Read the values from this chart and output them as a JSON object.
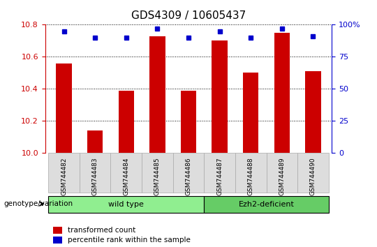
{
  "title": "GDS4309 / 10605437",
  "samples": [
    "GSM744482",
    "GSM744483",
    "GSM744484",
    "GSM744485",
    "GSM744486",
    "GSM744487",
    "GSM744488",
    "GSM744489",
    "GSM744490"
  ],
  "bar_values": [
    10.56,
    10.14,
    10.39,
    10.73,
    10.39,
    10.7,
    10.5,
    10.75,
    10.51
  ],
  "percentile_values": [
    95,
    90,
    90,
    97,
    90,
    95,
    90,
    97,
    91
  ],
  "bar_color": "#cc0000",
  "percentile_color": "#0000cc",
  "ylim_left": [
    10,
    10.8
  ],
  "ylim_right": [
    0,
    100
  ],
  "yticks_left": [
    10,
    10.2,
    10.4,
    10.6,
    10.8
  ],
  "yticks_right": [
    0,
    25,
    50,
    75,
    100
  ],
  "ytick_labels_right": [
    "0",
    "25",
    "50",
    "75",
    "100%"
  ],
  "groups": [
    {
      "label": "wild type",
      "samples": [
        0,
        1,
        2,
        3,
        4
      ],
      "color": "#90ee90"
    },
    {
      "label": "Ezh2-deficient",
      "samples": [
        5,
        6,
        7,
        8
      ],
      "color": "#66cc66"
    }
  ],
  "genotype_label": "genotype/variation",
  "legend_bar_label": "transformed count",
  "legend_dot_label": "percentile rank within the sample",
  "background_color": "#ffffff",
  "plot_bg_color": "#ffffff",
  "grid_color": "#000000",
  "title_fontsize": 11,
  "axis_fontsize": 9,
  "tick_fontsize": 8,
  "bar_width": 0.5
}
